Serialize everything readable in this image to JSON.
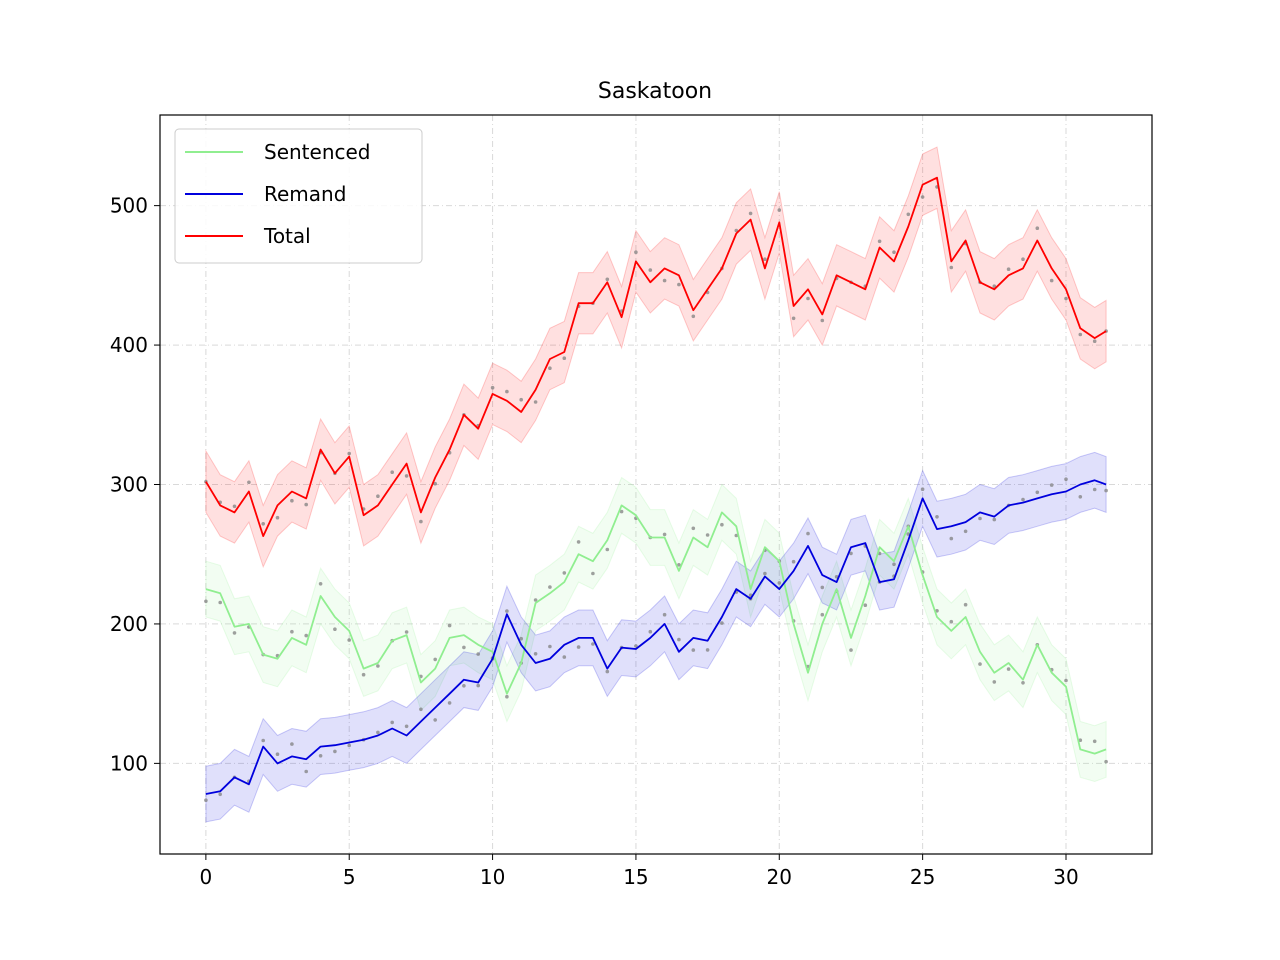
{
  "chart_data": {
    "type": "line",
    "title": "Saskatoon",
    "xlabel": "",
    "ylabel": "",
    "xlim": [
      -1.6,
      33.0
    ],
    "ylim": [
      35,
      565
    ],
    "x_ticks": [
      0,
      5,
      10,
      15,
      20,
      25,
      30
    ],
    "y_ticks": [
      100,
      200,
      300,
      400,
      500
    ],
    "grid": true,
    "legend_position": "top-left",
    "series": [
      {
        "name": "Sentenced",
        "color": "#90ee90",
        "x": [
          0,
          0.5,
          1,
          1.5,
          2,
          2.5,
          3,
          3.5,
          4,
          4.5,
          5,
          5.5,
          6,
          6.5,
          7,
          7.5,
          8,
          8.5,
          9,
          9.5,
          10,
          10.5,
          11,
          11.5,
          12,
          12.5,
          13,
          13.5,
          14,
          14.5,
          15,
          15.5,
          16,
          16.5,
          17,
          17.5,
          18,
          18.5,
          19,
          19.5,
          20,
          20.5,
          21,
          21.5,
          22,
          22.5,
          23,
          23.5,
          24,
          24.5,
          25,
          25.5,
          26,
          26.5,
          27,
          27.5,
          28,
          28.5,
          29,
          29.5,
          30,
          30.5,
          31,
          31.4
        ],
        "values": [
          225,
          222,
          198,
          200,
          178,
          175,
          190,
          185,
          220,
          205,
          195,
          168,
          172,
          188,
          192,
          158,
          168,
          190,
          192,
          185,
          180,
          150,
          172,
          215,
          222,
          230,
          250,
          245,
          260,
          285,
          278,
          262,
          262,
          238,
          262,
          255,
          280,
          270,
          225,
          255,
          245,
          200,
          165,
          200,
          225,
          190,
          220,
          255,
          245,
          270,
          235,
          205,
          195,
          205,
          180,
          165,
          172,
          160,
          185,
          165,
          155,
          110,
          107,
          110
        ],
        "band": 20
      },
      {
        "name": "Remand",
        "color": "#0000dd",
        "x": [
          0,
          0.5,
          1,
          1.5,
          2,
          2.5,
          3,
          3.5,
          4,
          4.5,
          5,
          5.5,
          6,
          6.5,
          7,
          7.5,
          8,
          8.5,
          9,
          9.5,
          10,
          10.5,
          11,
          11.5,
          12,
          12.5,
          13,
          13.5,
          14,
          14.5,
          15,
          15.5,
          16,
          16.5,
          17,
          17.5,
          18,
          18.5,
          19,
          19.5,
          20,
          20.5,
          21,
          21.5,
          22,
          22.5,
          23,
          23.5,
          24,
          24.5,
          25,
          25.5,
          26,
          26.5,
          27,
          27.5,
          28,
          28.5,
          29,
          29.5,
          30,
          30.5,
          31,
          31.4
        ],
        "values": [
          78,
          80,
          90,
          85,
          112,
          100,
          105,
          103,
          112,
          113,
          115,
          117,
          120,
          125,
          120,
          130,
          140,
          150,
          160,
          158,
          175,
          207,
          185,
          172,
          175,
          185,
          190,
          190,
          168,
          183,
          182,
          190,
          200,
          180,
          190,
          188,
          205,
          225,
          218,
          234,
          225,
          238,
          256,
          235,
          230,
          255,
          258,
          230,
          232,
          260,
          290,
          268,
          270,
          273,
          280,
          277,
          285,
          287,
          290,
          293,
          295,
          300,
          303,
          300
        ],
        "band": 20
      },
      {
        "name": "Total",
        "color": "#ff0000",
        "x": [
          0,
          0.5,
          1,
          1.5,
          2,
          2.5,
          3,
          3.5,
          4,
          4.5,
          5,
          5.5,
          6,
          6.5,
          7,
          7.5,
          8,
          8.5,
          9,
          9.5,
          10,
          10.5,
          11,
          11.5,
          12,
          12.5,
          13,
          13.5,
          14,
          14.5,
          15,
          15.5,
          16,
          16.5,
          17,
          17.5,
          18,
          18.5,
          19,
          19.5,
          20,
          20.5,
          21,
          21.5,
          22,
          22.5,
          23,
          23.5,
          24,
          24.5,
          25,
          25.5,
          26,
          26.5,
          27,
          27.5,
          28,
          28.5,
          29,
          29.5,
          30,
          30.5,
          31,
          31.4
        ],
        "values": [
          302,
          285,
          280,
          295,
          263,
          285,
          295,
          290,
          325,
          308,
          320,
          278,
          285,
          300,
          315,
          280,
          305,
          325,
          350,
          340,
          365,
          360,
          352,
          368,
          390,
          395,
          430,
          430,
          445,
          420,
          460,
          445,
          455,
          450,
          425,
          440,
          455,
          480,
          490,
          455,
          488,
          428,
          440,
          422,
          450,
          445,
          440,
          470,
          460,
          485,
          515,
          520,
          460,
          475,
          445,
          440,
          450,
          455,
          475,
          455,
          440,
          412,
          405,
          410
        ],
        "band": 22
      }
    ]
  }
}
